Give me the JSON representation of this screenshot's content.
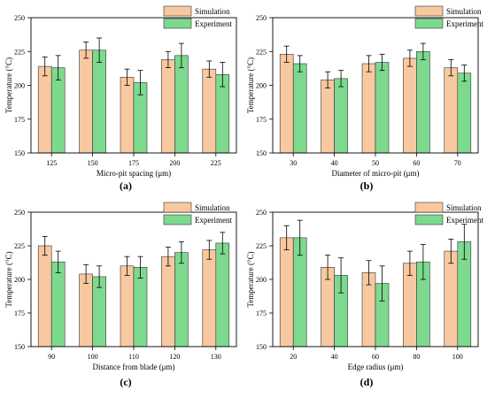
{
  "colors": {
    "simulation": "#F8C8A0",
    "experiment": "#7DD98E",
    "error_bar": "#000000",
    "axis": "#000000"
  },
  "chart_data": [
    {
      "type": "bar",
      "panel_label": "(a)",
      "title": "",
      "xlabel": "Micro-pit spacing (μm)",
      "ylabel": "Temperature (°C)",
      "ylim": [
        150,
        250
      ],
      "yticks": [
        150,
        175,
        200,
        225,
        250
      ],
      "categories": [
        "125",
        "150",
        "175",
        "200",
        "225"
      ],
      "legend": {
        "position": "top-right"
      },
      "series": [
        {
          "name": "Simulation",
          "values": [
            214,
            226,
            206,
            219,
            212
          ],
          "errors": [
            7,
            6,
            6,
            6,
            6
          ]
        },
        {
          "name": "Experiment",
          "values": [
            213,
            226,
            202,
            222,
            208
          ],
          "errors": [
            9,
            9,
            9,
            9,
            9
          ]
        }
      ]
    },
    {
      "type": "bar",
      "panel_label": "(b)",
      "title": "",
      "xlabel": "Diameter of micro-pit (μm)",
      "ylabel": "Temperature (°C)",
      "ylim": [
        150,
        250
      ],
      "yticks": [
        150,
        175,
        200,
        225,
        250
      ],
      "categories": [
        "30",
        "40",
        "50",
        "60",
        "70"
      ],
      "legend": {
        "position": "top-right"
      },
      "series": [
        {
          "name": "Simulation",
          "values": [
            223,
            204,
            216,
            220,
            213
          ],
          "errors": [
            6,
            6,
            6,
            6,
            6
          ]
        },
        {
          "name": "Experiment",
          "values": [
            216,
            205,
            217,
            225,
            209
          ],
          "errors": [
            6,
            6,
            6,
            6,
            6
          ]
        }
      ]
    },
    {
      "type": "bar",
      "panel_label": "(c)",
      "title": "",
      "xlabel": "Distance from blade (μm)",
      "ylabel": "Temperature (°C)",
      "ylim": [
        150,
        250
      ],
      "yticks": [
        150,
        175,
        200,
        225,
        250
      ],
      "categories": [
        "90",
        "100",
        "110",
        "120",
        "130"
      ],
      "legend": {
        "position": "top-right"
      },
      "series": [
        {
          "name": "Simulation",
          "values": [
            225,
            204,
            210,
            217,
            222
          ],
          "errors": [
            7,
            7,
            7,
            7,
            7
          ]
        },
        {
          "name": "Experiment",
          "values": [
            213,
            202,
            209,
            220,
            227
          ],
          "errors": [
            8,
            8,
            8,
            8,
            8
          ]
        }
      ]
    },
    {
      "type": "bar",
      "panel_label": "(d)",
      "title": "",
      "xlabel": "Edge radius (μm)",
      "ylabel": "Temperature (°C)",
      "ylim": [
        150,
        250
      ],
      "yticks": [
        150,
        175,
        200,
        225,
        250
      ],
      "categories": [
        "20",
        "40",
        "60",
        "80",
        "100"
      ],
      "legend": {
        "position": "top-right"
      },
      "series": [
        {
          "name": "Simulation",
          "values": [
            231,
            209,
            205,
            212,
            221
          ],
          "errors": [
            9,
            9,
            9,
            9,
            9
          ]
        },
        {
          "name": "Experiment",
          "values": [
            231,
            203,
            197,
            213,
            228
          ],
          "errors": [
            13,
            13,
            13,
            13,
            13
          ]
        }
      ]
    }
  ]
}
